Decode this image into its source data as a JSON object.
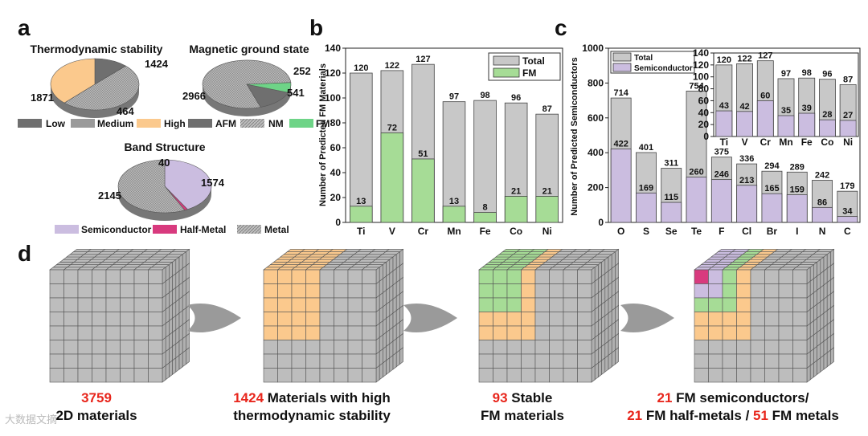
{
  "panel_labels": {
    "a": "a",
    "b": "b",
    "c": "c",
    "d": "d"
  },
  "colors": {
    "gray_dark": "#6f6f6f",
    "gray_mid": "#9a9a9a",
    "orange": "#fbc98d",
    "green": "#a6dc96",
    "green_fm": "#6ed487",
    "purple": "#cbbde0",
    "magenta": "#d83a7e",
    "bar_gray": "#c8c8c8",
    "cube_gray": "#bdbdbd"
  },
  "chart_data": [
    {
      "type": "pie",
      "title": "Thermodynamic stability",
      "slices": [
        {
          "label": "Low",
          "value": 464,
          "color": "#6f6f6f"
        },
        {
          "label": "Medium",
          "value": 1871,
          "color": "#9a9a9a"
        },
        {
          "label": "High",
          "value": 1424,
          "color": "#fbc98d"
        }
      ],
      "legend": [
        "Low",
        "Medium",
        "High"
      ]
    },
    {
      "type": "pie",
      "title": "Magnetic ground state",
      "slices": [
        {
          "label": "AFM",
          "value": 541,
          "color": "#6f6f6f"
        },
        {
          "label": "NM",
          "value": 2966,
          "color": "#a8a8a8"
        },
        {
          "label": "FM",
          "value": 252,
          "color": "#6ed487"
        }
      ],
      "legend": [
        "AFM",
        "NM",
        "FM"
      ]
    },
    {
      "type": "pie",
      "title": "Band Structure",
      "slices": [
        {
          "label": "Semiconductor",
          "value": 1574,
          "color": "#cbbde0"
        },
        {
          "label": "Half-Metal",
          "value": 40,
          "color": "#d83a7e"
        },
        {
          "label": "Metal",
          "value": 2145,
          "color": "#a8a8a8"
        }
      ],
      "legend": [
        "Semiconductor",
        "Half-Metal",
        "Metal"
      ]
    },
    {
      "type": "bar",
      "ylabel": "Number of Predicted FM Materials",
      "categories": [
        "Ti",
        "V",
        "Cr",
        "Mn",
        "Fe",
        "Co",
        "Ni"
      ],
      "series": [
        {
          "name": "Total",
          "values": [
            120,
            122,
            127,
            97,
            98,
            96,
            87
          ]
        },
        {
          "name": "FM",
          "values": [
            13,
            72,
            51,
            13,
            8,
            21,
            21
          ]
        }
      ],
      "ylim": [
        0,
        140
      ],
      "yticks": [
        "0",
        "20",
        "40",
        "60",
        "80",
        "100",
        "120",
        "140"
      ],
      "legend": [
        "Total",
        "FM"
      ]
    },
    {
      "type": "bar",
      "ylabel": "Number of Predicted Semiconductors",
      "categories": [
        "O",
        "S",
        "Se",
        "Te",
        "F",
        "Cl",
        "Br",
        "I",
        "N",
        "C"
      ],
      "series": [
        {
          "name": "Total",
          "values": [
            714,
            401,
            311,
            754,
            375,
            336,
            294,
            289,
            242,
            179
          ]
        },
        {
          "name": "Semiconductor",
          "values": [
            422,
            169,
            115,
            260,
            246,
            213,
            165,
            159,
            86,
            34
          ]
        }
      ],
      "ylim": [
        0,
        1000
      ],
      "yticks": [
        "0",
        "200",
        "400",
        "600",
        "800",
        "1000"
      ],
      "legend": [
        "Total",
        "Semiconductor"
      ]
    },
    {
      "type": "bar",
      "inset": true,
      "categories": [
        "Ti",
        "V",
        "Cr",
        "Mn",
        "Fe",
        "Co",
        "Ni"
      ],
      "series": [
        {
          "name": "Total",
          "values": [
            120,
            122,
            127,
            97,
            98,
            96,
            87
          ]
        },
        {
          "name": "Semiconductor",
          "values": [
            43,
            42,
            60,
            35,
            39,
            28,
            27
          ]
        }
      ],
      "ylim": [
        0,
        140
      ],
      "yticks": [
        "0",
        "20",
        "40",
        "60",
        "80",
        "100",
        "120",
        "140"
      ]
    }
  ],
  "captions": [
    {
      "number": "3759",
      "text": " 2D materials"
    },
    {
      "number": "1424",
      "text": " Materials with high",
      "line2": "thermodynamic stability"
    },
    {
      "number": "93",
      "text": " Stable",
      "line2": "FM materials"
    },
    {
      "number": "21",
      "text": " FM semiconductors/",
      "number2": "21",
      "text2": " FM half-metals / ",
      "number3": "51",
      "text3": " FM metals"
    }
  ],
  "watermark": "大数据文摘"
}
